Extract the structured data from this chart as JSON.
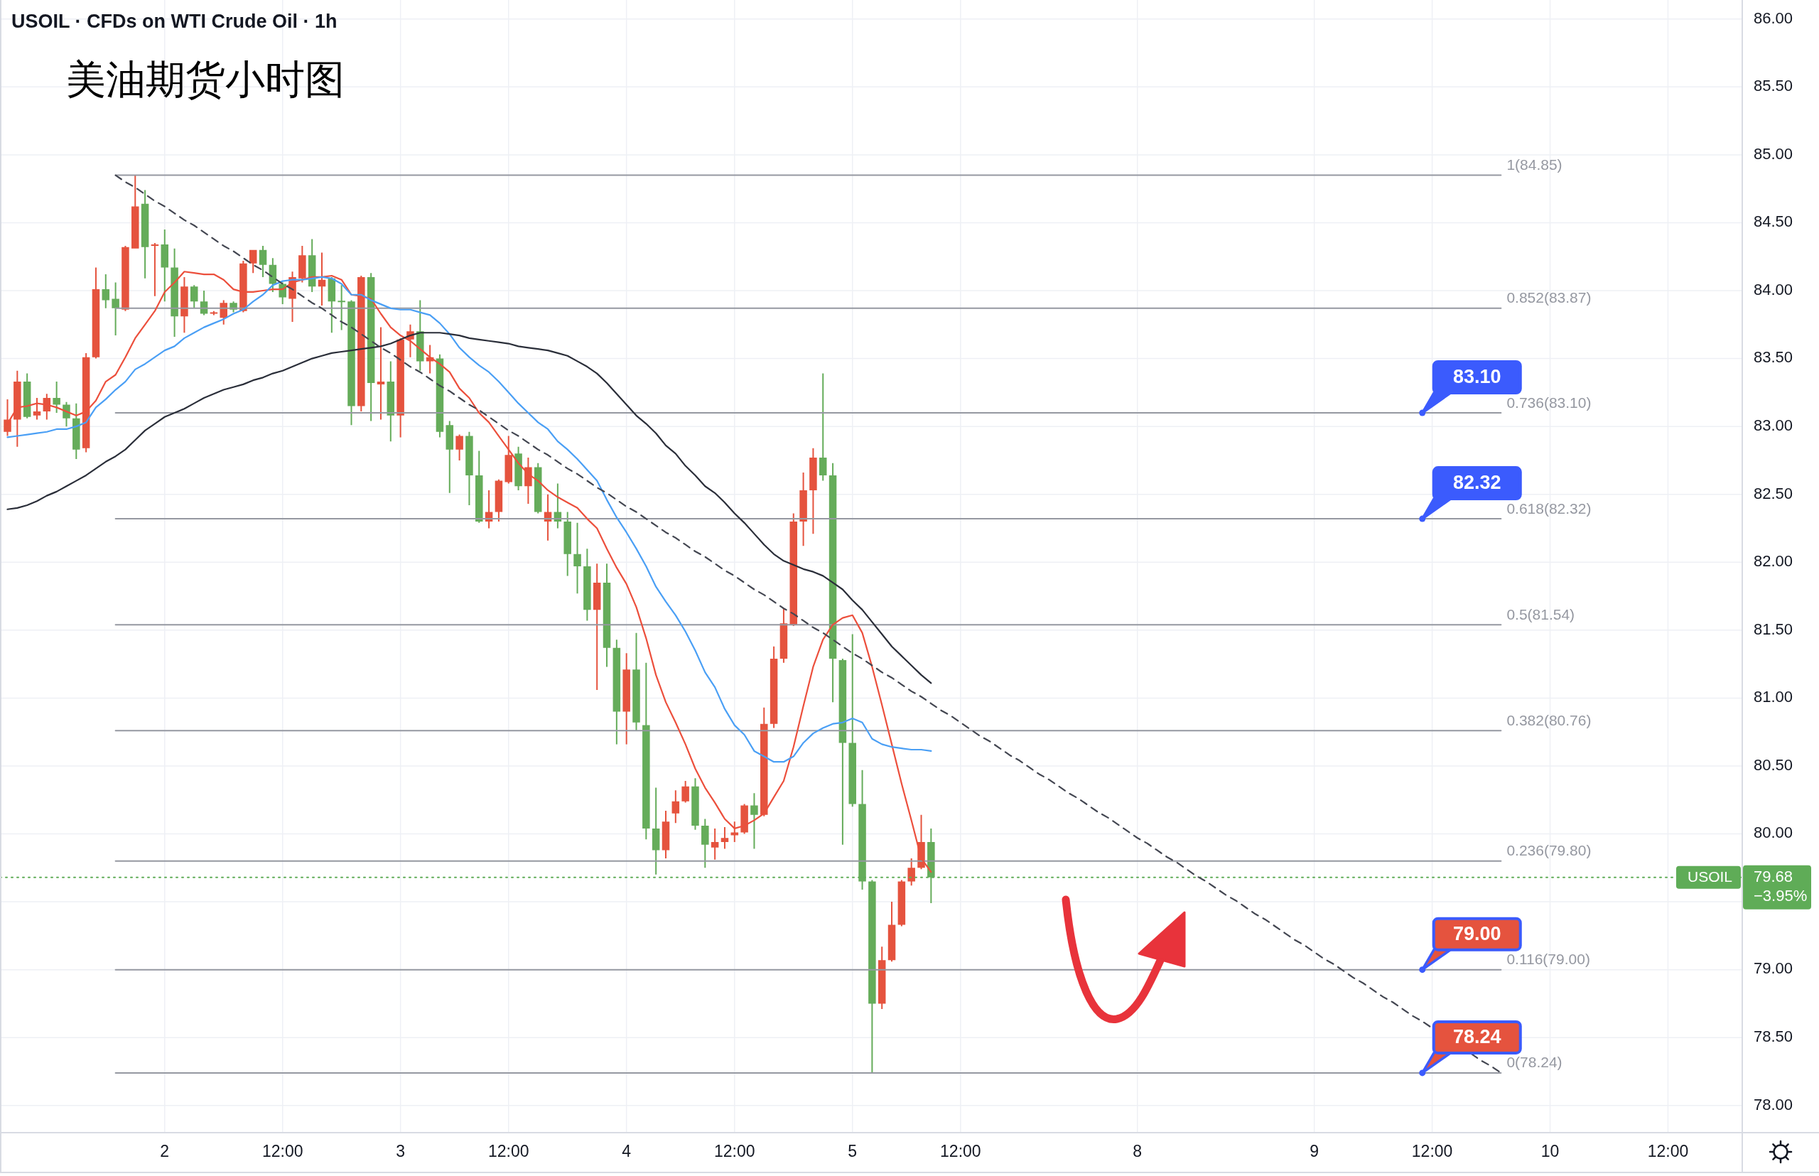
{
  "chart_data": {
    "type": "candlestick",
    "title": "USOIL · CFDs on WTI Crude Oil · 1h",
    "subtitle": "美油期货小时图",
    "categories": [
      null,
      null,
      null,
      null,
      null,
      null,
      null,
      null,
      null,
      null,
      null,
      null,
      null,
      null,
      null,
      null,
      "2",
      null,
      null,
      null,
      null,
      null,
      null,
      null,
      null,
      null,
      null,
      null,
      "12:00",
      null,
      null,
      null,
      null,
      null,
      null,
      null,
      null,
      null,
      null,
      null,
      "3",
      null,
      null,
      null,
      null,
      null,
      null,
      null,
      null,
      null,
      null,
      "12:00",
      null,
      null,
      null,
      null,
      null,
      null,
      null,
      null,
      null,
      null,
      null,
      "4",
      null,
      null,
      null,
      null,
      null,
      null,
      null,
      null,
      null,
      null,
      "12:00",
      null,
      null,
      null,
      null,
      null,
      null,
      null,
      null,
      null,
      null,
      null,
      "5",
      null,
      null,
      null,
      null,
      null,
      null,
      null,
      null,
      null,
      null,
      "12:00",
      null,
      null,
      null,
      null,
      null,
      null,
      null,
      null,
      null,
      null,
      null,
      null,
      null,
      null,
      null,
      null,
      null,
      "8",
      null,
      null,
      null,
      null,
      null,
      null,
      null,
      null,
      null,
      null,
      null,
      null,
      null,
      null,
      null,
      null,
      null,
      "9",
      null,
      null,
      null,
      null,
      null,
      null,
      null,
      null,
      null,
      null,
      null,
      "12:00",
      null,
      null,
      null,
      null,
      null,
      null,
      null,
      null,
      null,
      null,
      null,
      "10",
      null,
      null,
      null,
      null,
      null,
      null,
      null,
      null,
      null,
      null,
      null,
      "12:00",
      null,
      null,
      null,
      null,
      null,
      null,
      null
    ],
    "ohlc": [
      [
        82.96,
        83.2,
        82.93,
        83.05
      ],
      [
        83.05,
        83.41,
        82.85,
        83.33
      ],
      [
        83.33,
        83.39,
        83.06,
        83.07
      ],
      [
        83.08,
        83.21,
        83.05,
        83.11
      ],
      [
        83.11,
        83.24,
        83.05,
        83.21
      ],
      [
        83.21,
        83.33,
        83.1,
        83.16
      ],
      [
        83.16,
        83.18,
        83.0,
        83.06
      ],
      [
        83.06,
        83.17,
        82.76,
        82.83
      ],
      [
        82.84,
        83.54,
        82.81,
        83.51
      ],
      [
        83.51,
        84.17,
        83.5,
        84.01
      ],
      [
        84.01,
        84.12,
        83.87,
        83.93
      ],
      [
        83.94,
        84.06,
        83.67,
        83.87
      ],
      [
        83.86,
        84.33,
        83.85,
        84.32
      ],
      [
        84.31,
        84.85,
        84.31,
        84.62
      ],
      [
        84.64,
        84.74,
        84.09,
        84.32
      ],
      [
        84.33,
        84.35,
        83.96,
        84.34
      ],
      [
        84.34,
        84.45,
        83.92,
        84.17
      ],
      [
        84.17,
        84.31,
        83.66,
        83.81
      ],
      [
        83.81,
        84.1,
        83.69,
        84.03
      ],
      [
        84.03,
        84.04,
        83.87,
        83.92
      ],
      [
        83.92,
        84.0,
        83.82,
        83.83
      ],
      [
        83.83,
        83.85,
        83.82,
        83.84
      ],
      [
        83.8,
        83.93,
        83.75,
        83.91
      ],
      [
        83.91,
        83.92,
        83.84,
        83.86
      ],
      [
        83.85,
        84.22,
        83.84,
        84.2
      ],
      [
        84.2,
        84.3,
        84.13,
        84.3
      ],
      [
        84.3,
        84.33,
        84.1,
        84.19
      ],
      [
        84.19,
        84.24,
        83.99,
        84.05
      ],
      [
        84.05,
        84.06,
        83.9,
        83.95
      ],
      [
        83.94,
        84.14,
        83.77,
        84.1
      ],
      [
        84.09,
        84.33,
        84.06,
        84.26
      ],
      [
        84.26,
        84.38,
        83.99,
        84.03
      ],
      [
        84.03,
        84.28,
        83.89,
        84.08
      ],
      [
        84.09,
        84.1,
        83.69,
        83.92
      ],
      [
        83.92,
        84.04,
        83.71,
        83.92
      ],
      [
        83.92,
        83.93,
        83.01,
        83.15
      ],
      [
        83.15,
        84.11,
        83.11,
        84.1
      ],
      [
        84.1,
        84.13,
        83.04,
        83.32
      ],
      [
        83.31,
        83.73,
        83.05,
        83.33
      ],
      [
        83.33,
        83.48,
        82.89,
        83.08
      ],
      [
        83.08,
        83.65,
        82.92,
        83.64
      ],
      [
        83.64,
        83.75,
        83.51,
        83.7
      ],
      [
        83.7,
        83.93,
        83.41,
        83.48
      ],
      [
        83.48,
        83.6,
        83.39,
        83.51
      ],
      [
        83.5,
        83.53,
        82.92,
        82.96
      ],
      [
        83.01,
        83.04,
        82.51,
        82.83
      ],
      [
        82.83,
        82.94,
        82.75,
        82.93
      ],
      [
        82.93,
        82.96,
        82.42,
        82.64
      ],
      [
        82.64,
        82.82,
        82.29,
        82.3
      ],
      [
        82.3,
        82.53,
        82.25,
        82.37
      ],
      [
        82.37,
        82.61,
        82.3,
        82.6
      ],
      [
        82.59,
        82.93,
        82.58,
        82.79
      ],
      [
        82.8,
        82.85,
        82.53,
        82.56
      ],
      [
        82.56,
        82.77,
        82.43,
        82.7
      ],
      [
        82.7,
        82.73,
        82.36,
        82.37
      ],
      [
        82.3,
        82.5,
        82.16,
        82.37
      ],
      [
        82.37,
        82.58,
        82.25,
        82.3
      ],
      [
        82.3,
        82.37,
        81.9,
        82.06
      ],
      [
        82.06,
        82.29,
        81.77,
        81.97
      ],
      [
        81.97,
        82.1,
        81.57,
        81.65
      ],
      [
        81.65,
        81.99,
        81.06,
        81.85
      ],
      [
        81.85,
        81.99,
        81.23,
        81.37
      ],
      [
        81.37,
        81.43,
        80.66,
        80.9
      ],
      [
        80.9,
        81.33,
        80.66,
        81.21
      ],
      [
        81.21,
        81.48,
        80.76,
        80.82
      ],
      [
        80.8,
        81.26,
        79.96,
        80.04
      ],
      [
        80.04,
        80.34,
        79.7,
        79.88
      ],
      [
        79.88,
        80.17,
        79.82,
        80.09
      ],
      [
        80.15,
        80.32,
        80.08,
        80.24
      ],
      [
        80.24,
        80.39,
        80.23,
        80.35
      ],
      [
        80.35,
        80.41,
        80.03,
        80.06
      ],
      [
        80.06,
        80.11,
        79.75,
        79.92
      ],
      [
        79.9,
        80.04,
        79.81,
        79.94
      ],
      [
        79.94,
        80.05,
        79.89,
        79.97
      ],
      [
        79.99,
        80.09,
        79.94,
        80.01
      ],
      [
        80.01,
        80.22,
        80.0,
        80.21
      ],
      [
        80.21,
        80.3,
        79.89,
        80.14
      ],
      [
        80.14,
        80.93,
        80.13,
        80.81
      ],
      [
        80.81,
        81.38,
        80.78,
        81.29
      ],
      [
        81.29,
        81.66,
        81.26,
        81.55
      ],
      [
        81.54,
        82.36,
        81.53,
        82.3
      ],
      [
        82.3,
        82.66,
        82.12,
        82.53
      ],
      [
        82.53,
        82.84,
        82.21,
        82.77
      ],
      [
        82.77,
        83.39,
        82.6,
        82.64
      ],
      [
        82.64,
        82.73,
        80.97,
        81.29
      ],
      [
        81.28,
        81.29,
        79.92,
        80.67
      ],
      [
        80.67,
        81.47,
        80.2,
        80.22
      ],
      [
        80.22,
        80.47,
        79.59,
        79.65
      ],
      [
        79.65,
        79.66,
        78.24,
        78.75
      ],
      [
        78.75,
        79.17,
        78.71,
        79.07
      ],
      [
        79.07,
        79.5,
        79.06,
        79.33
      ],
      [
        79.33,
        79.66,
        79.32,
        79.65
      ],
      [
        79.65,
        79.82,
        79.62,
        79.75
      ],
      [
        79.75,
        80.14,
        79.74,
        79.94
      ],
      [
        79.94,
        80.04,
        79.49,
        79.68
      ],
      null,
      null,
      null,
      null,
      null,
      null,
      null,
      null,
      null,
      null,
      null,
      null,
      null,
      null,
      null,
      null,
      null,
      null,
      null,
      null,
      null,
      null,
      null,
      null,
      null,
      null,
      null,
      null,
      null,
      null,
      null,
      null,
      null,
      null,
      null,
      null,
      null,
      null,
      null,
      null,
      null,
      null,
      null,
      null,
      null,
      null,
      null,
      null,
      null,
      null,
      null,
      null,
      null,
      null,
      null,
      null,
      null,
      null,
      null,
      null,
      null,
      null,
      null,
      null,
      null,
      null,
      null,
      null,
      null,
      null,
      null,
      null,
      null,
      null,
      null,
      null,
      null,
      null,
      null,
      null,
      null,
      null
    ],
    "colors": [
      "#e5533e",
      "#e5533e",
      "#65ac5a",
      "#e5533e",
      "#e5533e",
      "#65ac5a",
      "#65ac5a",
      "#65ac5a",
      "#e5533e",
      "#e5533e",
      "#65ac5a",
      "#65ac5a",
      "#e5533e",
      "#e5533e",
      "#65ac5a",
      "#e5533e",
      "#65ac5a",
      "#65ac5a",
      "#e5533e",
      "#65ac5a",
      "#65ac5a",
      "#e5533e",
      "#e5533e",
      "#65ac5a",
      "#e5533e",
      "#e5533e",
      "#65ac5a",
      "#65ac5a",
      "#65ac5a",
      "#e5533e",
      "#e5533e",
      "#65ac5a",
      "#e5533e",
      "#65ac5a",
      "#65ac5a",
      "#65ac5a",
      "#e5533e",
      "#65ac5a",
      "#e5533e",
      "#65ac5a",
      "#e5533e",
      "#e5533e",
      "#65ac5a",
      "#e5533e",
      "#65ac5a",
      "#65ac5a",
      "#e5533e",
      "#65ac5a",
      "#65ac5a",
      "#e5533e",
      "#e5533e",
      "#e5533e",
      "#65ac5a",
      "#e5533e",
      "#65ac5a",
      "#e5533e",
      "#65ac5a",
      "#65ac5a",
      "#65ac5a",
      "#65ac5a",
      "#e5533e",
      "#65ac5a",
      "#65ac5a",
      "#e5533e",
      "#65ac5a",
      "#65ac5a",
      "#65ac5a",
      "#e5533e",
      "#e5533e",
      "#e5533e",
      "#65ac5a",
      "#65ac5a",
      "#e5533e",
      "#e5533e",
      "#e5533e",
      "#e5533e",
      "#65ac5a",
      "#e5533e",
      "#e5533e",
      "#e5533e",
      "#e5533e",
      "#e5533e",
      "#e5533e",
      "#65ac5a",
      "#65ac5a",
      "#65ac5a",
      "#65ac5a",
      "#65ac5a",
      "#65ac5a",
      "#e5533e",
      "#e5533e",
      "#e5533e",
      "#e5533e",
      "#e5533e",
      "#65ac5a",
      null,
      null,
      null,
      null,
      null,
      null,
      null,
      null,
      null,
      null,
      null,
      null,
      null,
      null,
      null,
      null,
      null,
      null,
      null,
      null,
      null,
      null,
      null,
      null,
      null,
      null,
      null,
      null,
      null,
      null,
      null,
      null,
      null,
      null,
      null,
      null,
      null,
      null,
      null,
      null,
      null,
      null,
      null,
      null,
      null,
      null,
      null,
      null,
      null,
      null,
      null,
      null,
      null,
      null,
      null,
      null,
      null,
      null,
      null,
      null,
      null,
      null,
      null,
      null,
      null,
      null,
      null,
      null,
      null,
      null,
      null,
      null,
      null,
      null,
      null,
      null,
      null,
      null,
      null,
      null,
      null,
      null
    ],
    "series": [
      {
        "type": "line",
        "color": "#ec4f3c",
        "values": [
          83.02,
          83.14,
          83.15,
          83.17,
          83.16,
          83.14,
          83.11,
          83.08,
          83.11,
          83.19,
          83.33,
          83.38,
          83.51,
          83.65,
          83.75,
          83.85,
          83.99,
          84.06,
          84.14,
          84.13,
          84.12,
          84.12,
          84.08,
          84.01,
          83.99,
          83.99,
          84.0,
          84.01,
          84.01,
          84.06,
          84.08,
          84.1,
          84.1,
          84.11,
          84.08,
          83.97,
          83.96,
          83.94,
          83.83,
          83.73,
          83.67,
          83.63,
          83.57,
          83.51,
          83.46,
          83.4,
          83.28,
          83.21,
          83.1,
          83.03,
          82.93,
          82.83,
          82.73,
          82.65,
          82.6,
          82.53,
          82.48,
          82.44,
          82.4,
          82.32,
          82.25,
          82.1,
          81.96,
          81.84,
          81.67,
          81.44,
          81.17,
          80.97,
          80.82,
          80.66,
          80.48,
          80.34,
          80.23,
          80.11,
          80.04,
          80.06,
          80.1,
          80.15,
          80.27,
          80.39,
          80.64,
          80.94,
          81.23,
          81.43,
          81.54,
          81.59,
          81.61,
          81.48,
          81.23,
          80.95,
          80.66,
          80.37,
          80.1,
          79.82,
          79.72,
          null,
          null,
          null,
          null,
          null,
          null,
          null,
          null,
          null,
          null,
          null,
          null,
          null,
          null,
          null,
          null,
          null,
          null,
          null,
          null,
          null,
          null,
          null,
          null,
          null,
          null,
          null,
          null,
          null,
          null,
          null,
          null,
          null,
          null,
          null,
          null,
          null,
          null,
          null,
          null,
          null,
          null,
          null,
          null,
          null,
          null,
          null,
          null,
          null,
          null,
          null,
          null,
          null,
          null,
          null,
          null,
          null,
          null,
          null,
          null,
          null,
          null,
          null,
          null,
          null,
          null,
          null,
          null,
          null,
          null,
          null,
          null,
          null,
          null,
          null,
          null,
          null,
          null,
          null,
          null,
          null,
          null
        ]
      },
      {
        "type": "line",
        "color": "#4a9ff5",
        "values": [
          82.92,
          82.93,
          82.94,
          82.95,
          82.96,
          82.98,
          82.98,
          83.0,
          83.03,
          83.14,
          83.2,
          83.27,
          83.33,
          83.42,
          83.46,
          83.51,
          83.56,
          83.59,
          83.65,
          83.69,
          83.73,
          83.76,
          83.79,
          83.83,
          83.86,
          83.92,
          83.97,
          84.04,
          84.07,
          84.08,
          84.08,
          84.09,
          84.1,
          84.09,
          84.05,
          83.97,
          83.97,
          83.93,
          83.9,
          83.87,
          83.86,
          83.86,
          83.84,
          83.82,
          83.76,
          83.68,
          83.58,
          83.51,
          83.45,
          83.4,
          83.33,
          83.25,
          83.17,
          83.1,
          83.03,
          82.98,
          82.89,
          82.83,
          82.76,
          82.68,
          82.6,
          82.46,
          82.33,
          82.22,
          82.1,
          81.97,
          81.82,
          81.71,
          81.61,
          81.49,
          81.35,
          81.19,
          81.08,
          80.92,
          80.8,
          80.73,
          80.61,
          80.57,
          80.53,
          80.53,
          80.57,
          80.67,
          80.74,
          80.78,
          80.81,
          80.82,
          80.85,
          80.82,
          80.7,
          80.66,
          80.64,
          80.63,
          80.62,
          80.62,
          80.61,
          null,
          null,
          null,
          null,
          null,
          null,
          null,
          null,
          null,
          null,
          null,
          null,
          null,
          null,
          null,
          null,
          null,
          null,
          null,
          null,
          null,
          null,
          null,
          null,
          null,
          null,
          null,
          null,
          null,
          null,
          null,
          null,
          null,
          null,
          null,
          null,
          null,
          null,
          null,
          null,
          null,
          null,
          null,
          null,
          null,
          null,
          null,
          null,
          null,
          null,
          null,
          null,
          null,
          null,
          null,
          null,
          null,
          null,
          null,
          null,
          null,
          null,
          null,
          null,
          null,
          null,
          null,
          null,
          null,
          null,
          null,
          null,
          null,
          null,
          null,
          null,
          null,
          null,
          null,
          null,
          null,
          null
        ]
      },
      {
        "type": "line",
        "color": "#2a2e39",
        "values": [
          82.39,
          82.4,
          82.42,
          82.45,
          82.49,
          82.52,
          82.56,
          82.6,
          82.64,
          82.69,
          82.74,
          82.78,
          82.83,
          82.9,
          82.97,
          83.02,
          83.07,
          83.1,
          83.13,
          83.17,
          83.21,
          83.24,
          83.27,
          83.29,
          83.31,
          83.34,
          83.36,
          83.39,
          83.41,
          83.44,
          83.47,
          83.5,
          83.52,
          83.54,
          83.55,
          83.56,
          83.57,
          83.58,
          83.59,
          83.61,
          83.64,
          83.67,
          83.69,
          83.69,
          83.69,
          83.68,
          83.67,
          83.65,
          83.64,
          83.63,
          83.62,
          83.61,
          83.59,
          83.58,
          83.57,
          83.56,
          83.54,
          83.52,
          83.48,
          83.44,
          83.39,
          83.32,
          83.24,
          83.16,
          83.08,
          83.02,
          82.95,
          82.86,
          82.8,
          82.71,
          82.64,
          82.56,
          82.51,
          82.44,
          82.36,
          82.29,
          82.21,
          82.13,
          82.06,
          82.01,
          81.98,
          81.95,
          81.93,
          81.9,
          81.85,
          81.8,
          81.72,
          81.65,
          81.56,
          81.47,
          81.38,
          81.31,
          81.24,
          81.17,
          81.11,
          null,
          null,
          null,
          null,
          null,
          null,
          null,
          null,
          null,
          null,
          null,
          null,
          null,
          null,
          null,
          null,
          null,
          null,
          null,
          null,
          null,
          null,
          null,
          null,
          null,
          null,
          null,
          null,
          null,
          null,
          null,
          null,
          null,
          null,
          null,
          null,
          null,
          null,
          null,
          null,
          null,
          null,
          null,
          null,
          null,
          null,
          null,
          null,
          null,
          null,
          null,
          null,
          null,
          null,
          null,
          null,
          null,
          null,
          null,
          null,
          null,
          null,
          null,
          null,
          null,
          null,
          null,
          null,
          null,
          null,
          null,
          null,
          null,
          null,
          null,
          null,
          null,
          null,
          null,
          null,
          null,
          null
        ]
      },
      {
        "type": "line",
        "color": "#434651",
        "line_style": "dashed",
        "values": [
          null,
          null,
          null,
          null,
          null,
          null,
          null,
          null,
          null,
          null,
          null,
          84.85,
          84.8,
          84.76,
          84.71,
          84.66,
          84.62,
          84.57,
          84.52,
          84.48,
          84.43,
          84.38,
          84.33,
          84.29,
          84.24,
          84.19,
          84.15,
          84.1,
          84.05,
          84.01,
          83.96,
          83.91,
          83.87,
          83.82,
          83.77,
          83.73,
          83.68,
          83.63,
          83.58,
          83.54,
          83.49,
          83.44,
          83.4,
          83.35,
          83.3,
          83.26,
          83.21,
          83.16,
          83.12,
          83.07,
          83.02,
          82.97,
          82.93,
          82.88,
          82.83,
          82.79,
          82.74,
          82.69,
          82.65,
          82.6,
          82.55,
          82.51,
          82.46,
          82.41,
          82.37,
          82.32,
          82.27,
          82.22,
          82.18,
          82.13,
          82.08,
          82.04,
          81.99,
          81.94,
          81.9,
          81.85,
          81.8,
          81.76,
          81.71,
          81.66,
          81.62,
          81.57,
          81.52,
          81.48,
          81.43,
          81.38,
          81.33,
          81.29,
          81.24,
          81.19,
          81.15,
          81.1,
          81.05,
          81.01,
          80.96,
          80.91,
          80.87,
          80.82,
          80.77,
          80.72,
          80.68,
          80.63,
          80.58,
          80.54,
          80.49,
          80.44,
          80.4,
          80.35,
          80.3,
          80.26,
          80.21,
          80.16,
          80.12,
          80.07,
          80.02,
          79.97,
          79.93,
          79.88,
          79.83,
          79.79,
          79.74,
          79.69,
          79.65,
          79.6,
          79.55,
          79.51,
          79.46,
          79.41,
          79.37,
          79.32,
          79.27,
          79.22,
          79.18,
          79.13,
          79.08,
          79.04,
          78.99,
          78.94,
          78.9,
          78.85,
          78.8,
          78.76,
          78.71,
          78.66,
          78.62,
          78.57,
          null,
          null,
          null,
          78.38,
          78.33,
          78.29,
          78.24,
          null,
          null,
          null,
          null,
          null,
          null,
          null,
          null,
          null,
          null,
          null,
          null,
          null,
          null,
          null,
          null,
          null,
          null,
          null,
          null,
          null,
          null,
          null,
          null
        ]
      }
    ],
    "ylim": [
      77.8,
      86.14
    ],
    "yticks": [
      {
        "value": 78,
        "label": "78.00"
      },
      {
        "value": 78.5,
        "label": "78.50"
      },
      {
        "value": 79,
        "label": "79.00"
      },
      {
        "value": 79.5,
        "label": null
      },
      {
        "value": 80,
        "label": "80.00"
      },
      {
        "value": 80.5,
        "label": "80.50"
      },
      {
        "value": 81,
        "label": "81.00"
      },
      {
        "value": 81.5,
        "label": "81.50"
      },
      {
        "value": 82,
        "label": "82.00"
      },
      {
        "value": 82.5,
        "label": "82.50"
      },
      {
        "value": 83,
        "label": "83.00"
      },
      {
        "value": 83.5,
        "label": "83.50"
      },
      {
        "value": 84,
        "label": "84.00"
      },
      {
        "value": 84.5,
        "label": "84.50"
      },
      {
        "value": 85,
        "label": "85.00"
      },
      {
        "value": 85.5,
        "label": "85.50"
      },
      {
        "value": 86,
        "label": "86.00"
      }
    ],
    "grid": true,
    "ref_lines": [
      {
        "axis": "y",
        "value": 84.85,
        "label": "1(84.85)",
        "color": "#9598a1"
      },
      {
        "axis": "y",
        "value": 83.87,
        "label": "0.852(83.87)",
        "color": "#9598a1"
      },
      {
        "axis": "y",
        "value": 83.1,
        "label": "0.736(83.10)",
        "color": "#9598a1"
      },
      {
        "axis": "y",
        "value": 82.32,
        "label": "0.618(82.32)",
        "color": "#9598a1"
      },
      {
        "axis": "y",
        "value": 81.54,
        "label": "0.5(81.54)",
        "color": "#9598a1"
      },
      {
        "axis": "y",
        "value": 80.76,
        "label": "0.382(80.76)",
        "color": "#9598a1"
      },
      {
        "axis": "y",
        "value": 79.8,
        "label": "0.236(79.80)",
        "color": "#9598a1"
      },
      {
        "axis": "y",
        "value": 79.0,
        "label": "0.116(79.00)",
        "color": "#9598a1"
      },
      {
        "axis": "y",
        "value": 78.24,
        "label": "0(78.24)",
        "color": "#9598a1"
      },
      {
        "axis": "y",
        "value": 79.68,
        "label": "USOIL",
        "color": "#5fac57",
        "line_style": "dotted"
      }
    ],
    "annotations": [
      "79.68",
      "−3.95%",
      {
        "text": "83.10",
        "y": 83.1
      },
      {
        "text": "82.32",
        "y": 82.32
      },
      {
        "text": "79.00",
        "y": 79.0
      },
      {
        "text": "78.24",
        "y": 78.24
      }
    ]
  }
}
